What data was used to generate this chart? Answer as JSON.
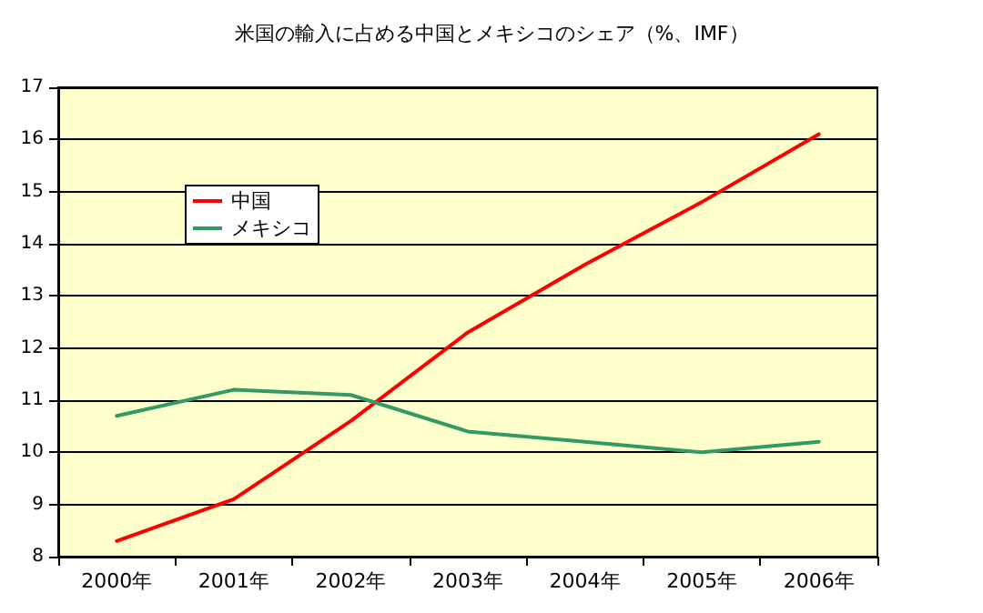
{
  "chart_data": {
    "type": "line",
    "title": "米国の輸入に占める中国とメキシコのシェア（%、IMF）",
    "categories": [
      "2000年",
      "2001年",
      "2002年",
      "2003年",
      "2004年",
      "2005年",
      "2006年"
    ],
    "series": [
      {
        "name": "中国",
        "color": "#ff0000",
        "values": [
          8.3,
          9.1,
          10.6,
          12.3,
          13.6,
          14.8,
          16.1
        ]
      },
      {
        "name": "メキシコ",
        "color": "#339966",
        "values": [
          10.7,
          11.2,
          11.1,
          10.4,
          10.2,
          10.0,
          10.2
        ]
      }
    ],
    "ylim": [
      8,
      17
    ],
    "yticks": [
      8,
      9,
      10,
      11,
      12,
      13,
      14,
      15,
      16,
      17
    ],
    "grid": "y",
    "legend": "top left",
    "marker": "none",
    "line_style": "solid"
  }
}
